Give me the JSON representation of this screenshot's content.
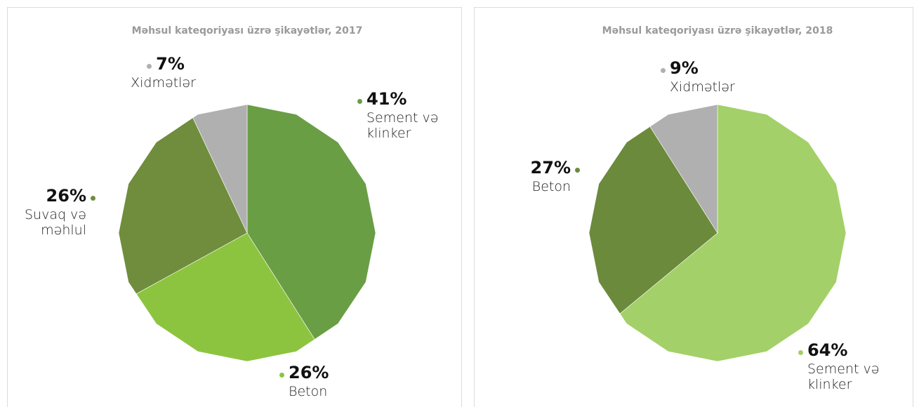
{
  "chart_data": [
    {
      "type": "pie",
      "title": "Məhsul kateqoriyası üzrə şikayətlər, 2017",
      "categories": [
        "Sement və klinker",
        "Beton",
        "Suvaq və məhlul",
        "Xidmətlər"
      ],
      "values": [
        41,
        26,
        26,
        7
      ],
      "value_labels": [
        "41%",
        "26%",
        "26%",
        "7%"
      ],
      "colors": [
        "#6a9e45",
        "#8cc43f",
        "#6f8d3c",
        "#b0b0b0"
      ]
    },
    {
      "type": "pie",
      "title": "Məhsul kateqoriyası üzrə şikayətlər, 2018",
      "categories": [
        "Sement və klinker",
        "Beton",
        "Xidmətlər"
      ],
      "values": [
        64,
        27,
        9
      ],
      "value_labels": [
        "64%",
        "27%",
        "9%"
      ],
      "colors": [
        "#a3d068",
        "#6b8a3c",
        "#b0b0b0"
      ]
    }
  ]
}
